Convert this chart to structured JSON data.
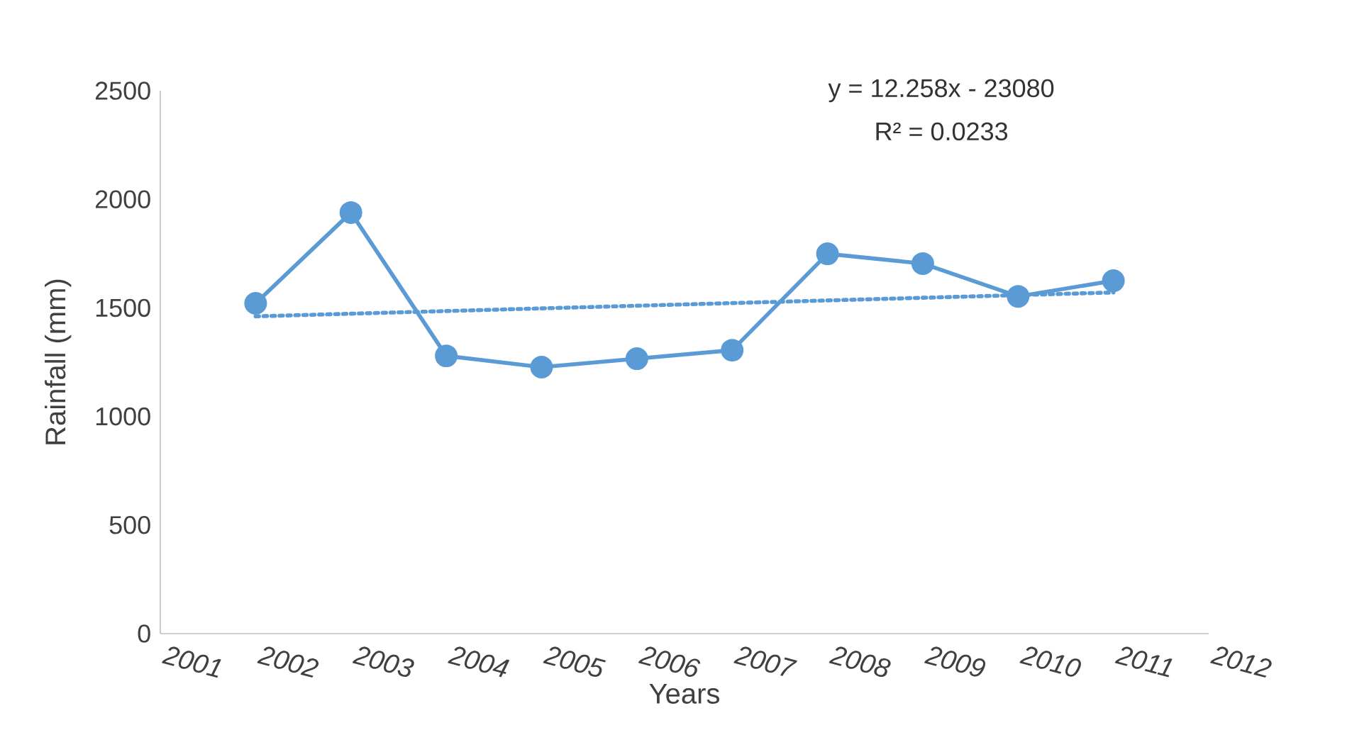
{
  "chart_data": {
    "type": "line",
    "xlabel": "Years",
    "ylabel": "Rainfall (mm)",
    "x": [
      2002,
      2003,
      2004,
      2005,
      2006,
      2007,
      2008,
      2009,
      2010,
      2011
    ],
    "series": [
      {
        "color": "#5b9bd5",
        "values": [
          1521,
          1939,
          1279,
          1227,
          1266,
          1305,
          1749,
          1704,
          1553,
          1625
        ],
        "marker": "circle",
        "line_style": "solid"
      },
      {
        "type": "line",
        "color": "#5b9bd5",
        "x": [
          2002,
          2011
        ],
        "values": [
          1461,
          1571
        ],
        "marker": "none",
        "line_style": "dotted"
      }
    ],
    "xlim": [
      2001,
      2012
    ],
    "xticks": [
      2001,
      2002,
      2003,
      2004,
      2005,
      2006,
      2007,
      2008,
      2009,
      2010,
      2011,
      2012
    ],
    "ylim": [
      0,
      2500
    ],
    "yticks": [
      0,
      500,
      1000,
      1500,
      2000,
      2500
    ],
    "grid": false,
    "annotations": [
      "y = 12.258x - 23080",
      "R² = 0.0233"
    ]
  }
}
